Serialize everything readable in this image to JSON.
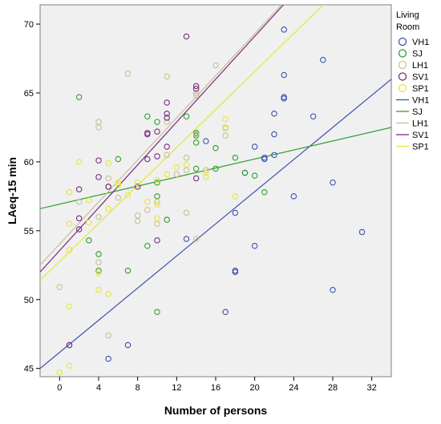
{
  "chart_data": {
    "type": "scatter",
    "title": "",
    "xlabel": "Number of persons",
    "ylabel": "LAeq-15 min",
    "xlim": [
      -2,
      34
    ],
    "ylim": [
      44.4,
      71.4
    ],
    "xticks": [
      0,
      4,
      8,
      12,
      16,
      20,
      24,
      28,
      32
    ],
    "yticks": [
      45,
      50,
      55,
      60,
      65,
      70
    ],
    "grid": false,
    "legend": {
      "title": "Living Room",
      "placement": "right",
      "markers": [
        "VH1",
        "SJ",
        "LH1",
        "SV1",
        "SP1"
      ],
      "lines": [
        "VH1",
        "SJ",
        "LH1",
        "SV1",
        "SP1"
      ]
    },
    "colors": {
      "VH1": "#3c50b0",
      "SJ": "#2ca02c",
      "LH1": "#c8bf99",
      "SV1": "#7b2a82",
      "SP1": "#e6e63c",
      "plot_background": "#f0f0f0"
    },
    "series": [
      {
        "name": "VH1",
        "points": [
          [
            1,
            46.7
          ],
          [
            5,
            45.7
          ],
          [
            7,
            46.7
          ],
          [
            13,
            54.4
          ],
          [
            15,
            61.5
          ],
          [
            17,
            49.1
          ],
          [
            18,
            56.3
          ],
          [
            18,
            52.1
          ],
          [
            18,
            52.0
          ],
          [
            19,
            59.2
          ],
          [
            20,
            61.1
          ],
          [
            20,
            53.9
          ],
          [
            21,
            60.3
          ],
          [
            21,
            60.2
          ],
          [
            22,
            62.0
          ],
          [
            22,
            60.5
          ],
          [
            22,
            63.5
          ],
          [
            23,
            69.6
          ],
          [
            23,
            66.3
          ],
          [
            23,
            64.7
          ],
          [
            23,
            64.6
          ],
          [
            24,
            57.5
          ],
          [
            26,
            63.3
          ],
          [
            27,
            67.4
          ],
          [
            28,
            58.5
          ],
          [
            28,
            50.7
          ],
          [
            31,
            54.9
          ]
        ],
        "fit": [
          [
            -2,
            45.0
          ],
          [
            34,
            66.0
          ]
        ]
      },
      {
        "name": "SJ",
        "points": [
          [
            2,
            64.7
          ],
          [
            3,
            54.3
          ],
          [
            4,
            53.3
          ],
          [
            4,
            52.1
          ],
          [
            5,
            58.2
          ],
          [
            6,
            60.2
          ],
          [
            7,
            52.1
          ],
          [
            9,
            63.3
          ],
          [
            9,
            53.9
          ],
          [
            10,
            62.9
          ],
          [
            10,
            58.5
          ],
          [
            10,
            57.5
          ],
          [
            10,
            49.1
          ],
          [
            11,
            55.8
          ],
          [
            13,
            63.3
          ],
          [
            14,
            62.1
          ],
          [
            14,
            61.9
          ],
          [
            14,
            61.4
          ],
          [
            14,
            59.5
          ],
          [
            16,
            61.0
          ],
          [
            16,
            59.5
          ],
          [
            18,
            60.3
          ],
          [
            19,
            59.2
          ],
          [
            20,
            59.0
          ],
          [
            21,
            57.8
          ]
        ],
        "fit": [
          [
            -2,
            56.6
          ],
          [
            34,
            62.5
          ]
        ]
      },
      {
        "name": "LH1",
        "points": [
          [
            0,
            50.9
          ],
          [
            2,
            57.1
          ],
          [
            4,
            62.9
          ],
          [
            4,
            62.5
          ],
          [
            4,
            56.0
          ],
          [
            4,
            52.7
          ],
          [
            5,
            47.4
          ],
          [
            5,
            58.8
          ],
          [
            6,
            57.4
          ],
          [
            7,
            66.4
          ],
          [
            8,
            56.1
          ],
          [
            8,
            55.7
          ],
          [
            9,
            56.5
          ],
          [
            10,
            57.1
          ],
          [
            11,
            66.2
          ],
          [
            11,
            62.9
          ],
          [
            11,
            60.5
          ],
          [
            12,
            59.1
          ],
          [
            13,
            60.3
          ],
          [
            13,
            59.4
          ],
          [
            13,
            56.3
          ],
          [
            14,
            65.0
          ],
          [
            14,
            64.8
          ],
          [
            14,
            62.0
          ],
          [
            15,
            59.4
          ],
          [
            16,
            67.0
          ],
          [
            17,
            62.5
          ],
          [
            17,
            61.9
          ],
          [
            14,
            54.4
          ],
          [
            10,
            55.5
          ]
        ],
        "fit": [
          [
            -2,
            52.5
          ],
          [
            34,
            80.0
          ]
        ]
      },
      {
        "name": "SV1",
        "points": [
          [
            1,
            46.7
          ],
          [
            2,
            55.9
          ],
          [
            2,
            55.1
          ],
          [
            2,
            58.0
          ],
          [
            4,
            60.1
          ],
          [
            4,
            58.9
          ],
          [
            5,
            58.2
          ],
          [
            8,
            58.2
          ],
          [
            9,
            62.1
          ],
          [
            9,
            62.0
          ],
          [
            9,
            60.2
          ],
          [
            10,
            62.2
          ],
          [
            10,
            60.4
          ],
          [
            10,
            54.3
          ],
          [
            11,
            64.3
          ],
          [
            11,
            63.5
          ],
          [
            11,
            63.2
          ],
          [
            11,
            61.1
          ],
          [
            13,
            69.1
          ],
          [
            14,
            65.5
          ],
          [
            14,
            65.3
          ],
          [
            14,
            58.8
          ]
        ],
        "fit": [
          [
            -2,
            52.0
          ],
          [
            34,
            80.0
          ]
        ]
      },
      {
        "name": "SP1",
        "points": [
          [
            0,
            44.7
          ],
          [
            1,
            45.2
          ],
          [
            1,
            49.5
          ],
          [
            1,
            53.6
          ],
          [
            1,
            55.5
          ],
          [
            1,
            57.8
          ],
          [
            2,
            60.0
          ],
          [
            3,
            55.6
          ],
          [
            3,
            57.2
          ],
          [
            4,
            50.7
          ],
          [
            4,
            51.9
          ],
          [
            5,
            50.4
          ],
          [
            5,
            56.6
          ],
          [
            5,
            59.9
          ],
          [
            6,
            58.3
          ],
          [
            6,
            58.5
          ],
          [
            7,
            57.6
          ],
          [
            8,
            58.5
          ],
          [
            9,
            57.1
          ],
          [
            10,
            56.9
          ],
          [
            10,
            55.9
          ],
          [
            10,
            58.7
          ],
          [
            11,
            59.1
          ],
          [
            12,
            59.6
          ],
          [
            13,
            59.8
          ],
          [
            15,
            58.9
          ],
          [
            15,
            59.2
          ],
          [
            17,
            63.1
          ],
          [
            17,
            62.4
          ],
          [
            18,
            57.5
          ]
        ],
        "fit": [
          [
            -2,
            51.4
          ],
          [
            34,
            76.2
          ]
        ]
      }
    ]
  }
}
